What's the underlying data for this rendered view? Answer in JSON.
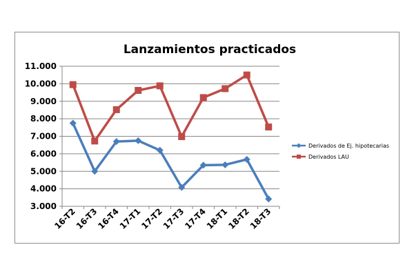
{
  "chart_data": {
    "type": "line",
    "title": "Lanzamientos practicados",
    "categories": [
      "16-T2",
      "16-T3",
      "16-T4",
      "17-T1",
      "17-T2",
      "17-T3",
      "17-T4",
      "18-T1",
      "18-T2",
      "18-T3"
    ],
    "series": [
      {
        "name": "Derivados de Ej. hipotecarias",
        "color": "#4a7ebb",
        "marker": "diamond",
        "values": [
          7750,
          5000,
          6700,
          6750,
          6200,
          4080,
          5350,
          5370,
          5680,
          3420
        ]
      },
      {
        "name": "Derivados LAU",
        "color": "#be4b48",
        "marker": "square",
        "values": [
          9950,
          6730,
          8520,
          9620,
          9880,
          6980,
          9210,
          9720,
          10500,
          7530
        ]
      }
    ],
    "ylim": [
      3000,
      11000
    ],
    "yticks": [
      3000,
      4000,
      5000,
      6000,
      7000,
      8000,
      9000,
      10000,
      11000
    ],
    "ytick_labels": [
      "3.000",
      "4.000",
      "5.000",
      "6.000",
      "7.000",
      "8.000",
      "9.000",
      "10.000",
      "11.000"
    ],
    "grid": true,
    "legend_position": "right",
    "xlabel": "",
    "ylabel": ""
  }
}
